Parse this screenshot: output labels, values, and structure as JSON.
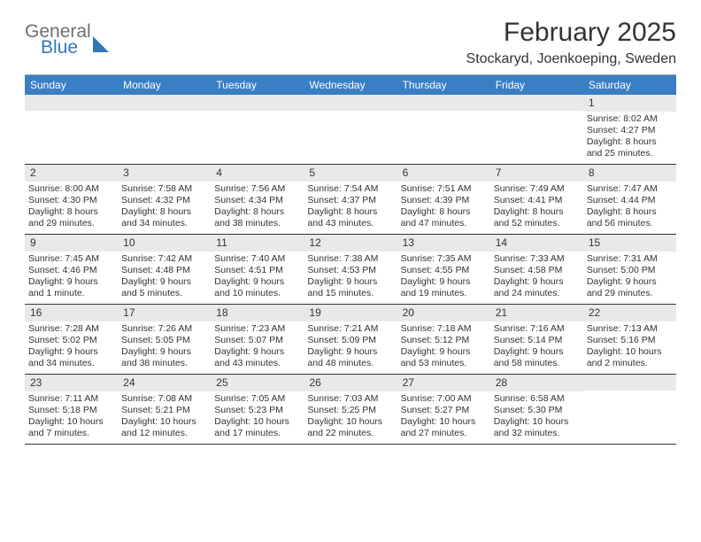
{
  "logo": {
    "line1": "General",
    "line2": "Blue"
  },
  "title": "February 2025",
  "location": "Stockaryd, Joenkoeping, Sweden",
  "colors": {
    "header_bg": "#3a7ec3",
    "header_text": "#ffffff",
    "daynum_bg": "#e9e9e9",
    "border": "#333333",
    "logo_gray": "#6f6f6f",
    "logo_blue": "#2f77b9"
  },
  "weekdays": [
    "Sunday",
    "Monday",
    "Tuesday",
    "Wednesday",
    "Thursday",
    "Friday",
    "Saturday"
  ],
  "weeks": [
    [
      null,
      null,
      null,
      null,
      null,
      null,
      {
        "n": "1",
        "sunrise": "Sunrise: 8:02 AM",
        "sunset": "Sunset: 4:27 PM",
        "daylight": "Daylight: 8 hours and 25 minutes."
      }
    ],
    [
      {
        "n": "2",
        "sunrise": "Sunrise: 8:00 AM",
        "sunset": "Sunset: 4:30 PM",
        "daylight": "Daylight: 8 hours and 29 minutes."
      },
      {
        "n": "3",
        "sunrise": "Sunrise: 7:58 AM",
        "sunset": "Sunset: 4:32 PM",
        "daylight": "Daylight: 8 hours and 34 minutes."
      },
      {
        "n": "4",
        "sunrise": "Sunrise: 7:56 AM",
        "sunset": "Sunset: 4:34 PM",
        "daylight": "Daylight: 8 hours and 38 minutes."
      },
      {
        "n": "5",
        "sunrise": "Sunrise: 7:54 AM",
        "sunset": "Sunset: 4:37 PM",
        "daylight": "Daylight: 8 hours and 43 minutes."
      },
      {
        "n": "6",
        "sunrise": "Sunrise: 7:51 AM",
        "sunset": "Sunset: 4:39 PM",
        "daylight": "Daylight: 8 hours and 47 minutes."
      },
      {
        "n": "7",
        "sunrise": "Sunrise: 7:49 AM",
        "sunset": "Sunset: 4:41 PM",
        "daylight": "Daylight: 8 hours and 52 minutes."
      },
      {
        "n": "8",
        "sunrise": "Sunrise: 7:47 AM",
        "sunset": "Sunset: 4:44 PM",
        "daylight": "Daylight: 8 hours and 56 minutes."
      }
    ],
    [
      {
        "n": "9",
        "sunrise": "Sunrise: 7:45 AM",
        "sunset": "Sunset: 4:46 PM",
        "daylight": "Daylight: 9 hours and 1 minute."
      },
      {
        "n": "10",
        "sunrise": "Sunrise: 7:42 AM",
        "sunset": "Sunset: 4:48 PM",
        "daylight": "Daylight: 9 hours and 5 minutes."
      },
      {
        "n": "11",
        "sunrise": "Sunrise: 7:40 AM",
        "sunset": "Sunset: 4:51 PM",
        "daylight": "Daylight: 9 hours and 10 minutes."
      },
      {
        "n": "12",
        "sunrise": "Sunrise: 7:38 AM",
        "sunset": "Sunset: 4:53 PM",
        "daylight": "Daylight: 9 hours and 15 minutes."
      },
      {
        "n": "13",
        "sunrise": "Sunrise: 7:35 AM",
        "sunset": "Sunset: 4:55 PM",
        "daylight": "Daylight: 9 hours and 19 minutes."
      },
      {
        "n": "14",
        "sunrise": "Sunrise: 7:33 AM",
        "sunset": "Sunset: 4:58 PM",
        "daylight": "Daylight: 9 hours and 24 minutes."
      },
      {
        "n": "15",
        "sunrise": "Sunrise: 7:31 AM",
        "sunset": "Sunset: 5:00 PM",
        "daylight": "Daylight: 9 hours and 29 minutes."
      }
    ],
    [
      {
        "n": "16",
        "sunrise": "Sunrise: 7:28 AM",
        "sunset": "Sunset: 5:02 PM",
        "daylight": "Daylight: 9 hours and 34 minutes."
      },
      {
        "n": "17",
        "sunrise": "Sunrise: 7:26 AM",
        "sunset": "Sunset: 5:05 PM",
        "daylight": "Daylight: 9 hours and 38 minutes."
      },
      {
        "n": "18",
        "sunrise": "Sunrise: 7:23 AM",
        "sunset": "Sunset: 5:07 PM",
        "daylight": "Daylight: 9 hours and 43 minutes."
      },
      {
        "n": "19",
        "sunrise": "Sunrise: 7:21 AM",
        "sunset": "Sunset: 5:09 PM",
        "daylight": "Daylight: 9 hours and 48 minutes."
      },
      {
        "n": "20",
        "sunrise": "Sunrise: 7:18 AM",
        "sunset": "Sunset: 5:12 PM",
        "daylight": "Daylight: 9 hours and 53 minutes."
      },
      {
        "n": "21",
        "sunrise": "Sunrise: 7:16 AM",
        "sunset": "Sunset: 5:14 PM",
        "daylight": "Daylight: 9 hours and 58 minutes."
      },
      {
        "n": "22",
        "sunrise": "Sunrise: 7:13 AM",
        "sunset": "Sunset: 5:16 PM",
        "daylight": "Daylight: 10 hours and 2 minutes."
      }
    ],
    [
      {
        "n": "23",
        "sunrise": "Sunrise: 7:11 AM",
        "sunset": "Sunset: 5:18 PM",
        "daylight": "Daylight: 10 hours and 7 minutes."
      },
      {
        "n": "24",
        "sunrise": "Sunrise: 7:08 AM",
        "sunset": "Sunset: 5:21 PM",
        "daylight": "Daylight: 10 hours and 12 minutes."
      },
      {
        "n": "25",
        "sunrise": "Sunrise: 7:05 AM",
        "sunset": "Sunset: 5:23 PM",
        "daylight": "Daylight: 10 hours and 17 minutes."
      },
      {
        "n": "26",
        "sunrise": "Sunrise: 7:03 AM",
        "sunset": "Sunset: 5:25 PM",
        "daylight": "Daylight: 10 hours and 22 minutes."
      },
      {
        "n": "27",
        "sunrise": "Sunrise: 7:00 AM",
        "sunset": "Sunset: 5:27 PM",
        "daylight": "Daylight: 10 hours and 27 minutes."
      },
      {
        "n": "28",
        "sunrise": "Sunrise: 6:58 AM",
        "sunset": "Sunset: 5:30 PM",
        "daylight": "Daylight: 10 hours and 32 minutes."
      },
      null
    ]
  ]
}
